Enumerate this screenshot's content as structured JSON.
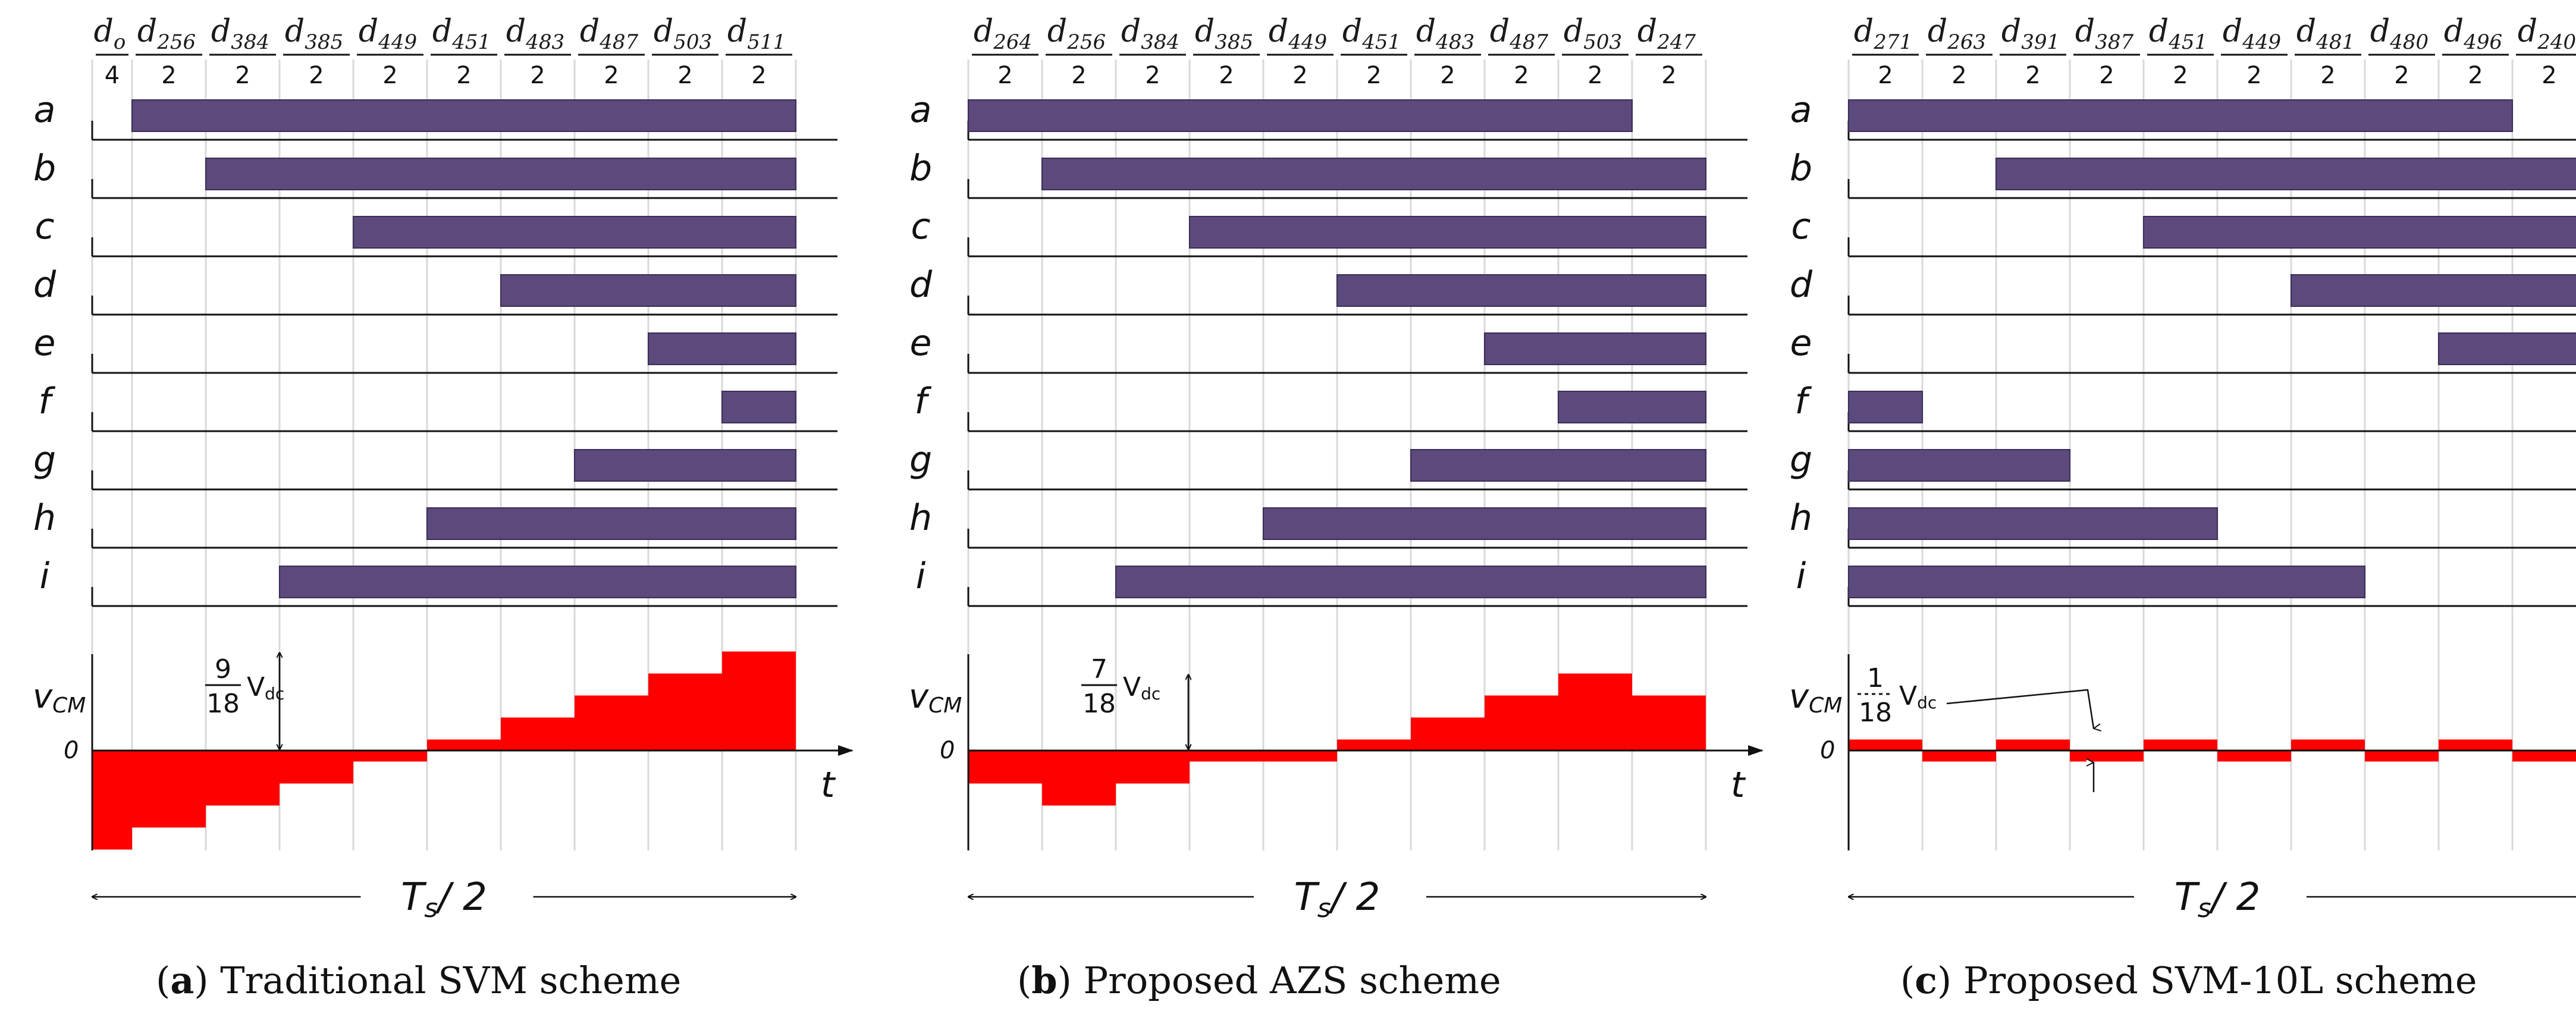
{
  "colors": {
    "bar": "#5c4a7c",
    "bar_edge": "#3b2d57",
    "vcm": "#ff0000",
    "line": "#111111",
    "grid": "#d8d8d8"
  },
  "rows": [
    "a",
    "b",
    "c",
    "d",
    "e",
    "f",
    "g",
    "h",
    "i"
  ],
  "vcm_label": {
    "main": "v",
    "sub": "CM"
  },
  "zero_label": "0",
  "time_label": "t",
  "period_label": {
    "main": "T",
    "sub": "s",
    "rest": "/ 2"
  },
  "panels": [
    {
      "caption_letter": "a",
      "caption_text": " Traditional SVM scheme",
      "intervals": [
        {
          "symbol": "d",
          "sub": "o",
          "count": "4"
        },
        {
          "symbol": "d",
          "sub": "256",
          "count": "2"
        },
        {
          "symbol": "d",
          "sub": "384",
          "count": "2"
        },
        {
          "symbol": "d",
          "sub": "385",
          "count": "2"
        },
        {
          "symbol": "d",
          "sub": "449",
          "count": "2"
        },
        {
          "symbol": "d",
          "sub": "451",
          "count": "2"
        },
        {
          "symbol": "d",
          "sub": "483",
          "count": "2"
        },
        {
          "symbol": "d",
          "sub": "487",
          "count": "2"
        },
        {
          "symbol": "d",
          "sub": "503",
          "count": "2"
        },
        {
          "symbol": "d",
          "sub": "511",
          "count": "2"
        }
      ],
      "switch_states": [
        [
          0,
          1,
          1,
          1,
          1,
          1,
          1,
          1,
          1,
          1
        ],
        [
          0,
          0,
          1,
          1,
          1,
          1,
          1,
          1,
          1,
          1
        ],
        [
          0,
          0,
          0,
          0,
          1,
          1,
          1,
          1,
          1,
          1
        ],
        [
          0,
          0,
          0,
          0,
          0,
          0,
          1,
          1,
          1,
          1
        ],
        [
          0,
          0,
          0,
          0,
          0,
          0,
          0,
          0,
          1,
          1
        ],
        [
          0,
          0,
          0,
          0,
          0,
          0,
          0,
          0,
          0,
          1
        ],
        [
          0,
          0,
          0,
          0,
          0,
          0,
          0,
          1,
          1,
          1
        ],
        [
          0,
          0,
          0,
          0,
          0,
          1,
          1,
          1,
          1,
          1
        ],
        [
          0,
          0,
          0,
          1,
          1,
          1,
          1,
          1,
          1,
          1
        ]
      ],
      "vcm_levels": [
        -9,
        -7,
        -5,
        -3,
        -1,
        1,
        3,
        5,
        7,
        9
      ],
      "annotation": {
        "numerator": "9",
        "denominator": "18",
        "unit": "V",
        "unit_sub": "dc"
      }
    },
    {
      "caption_letter": "b",
      "caption_text": " Proposed AZS scheme",
      "intervals": [
        {
          "symbol": "d",
          "sub": "264",
          "count": "2"
        },
        {
          "symbol": "d",
          "sub": "256",
          "count": "2"
        },
        {
          "symbol": "d",
          "sub": "384",
          "count": "2"
        },
        {
          "symbol": "d",
          "sub": "385",
          "count": "2"
        },
        {
          "symbol": "d",
          "sub": "449",
          "count": "2"
        },
        {
          "symbol": "d",
          "sub": "451",
          "count": "2"
        },
        {
          "symbol": "d",
          "sub": "483",
          "count": "2"
        },
        {
          "symbol": "d",
          "sub": "487",
          "count": "2"
        },
        {
          "symbol": "d",
          "sub": "503",
          "count": "2"
        },
        {
          "symbol": "d",
          "sub": "247",
          "count": "2"
        }
      ],
      "switch_states": [
        [
          1,
          1,
          1,
          1,
          1,
          1,
          1,
          1,
          1,
          0
        ],
        [
          0,
          1,
          1,
          1,
          1,
          1,
          1,
          1,
          1,
          1
        ],
        [
          0,
          0,
          0,
          1,
          1,
          1,
          1,
          1,
          1,
          1
        ],
        [
          0,
          0,
          0,
          0,
          0,
          1,
          1,
          1,
          1,
          1
        ],
        [
          0,
          0,
          0,
          0,
          0,
          0,
          0,
          1,
          1,
          1
        ],
        [
          0,
          0,
          0,
          0,
          0,
          0,
          0,
          0,
          1,
          1
        ],
        [
          0,
          0,
          0,
          0,
          0,
          0,
          1,
          1,
          1,
          1
        ],
        [
          0,
          0,
          0,
          0,
          1,
          1,
          1,
          1,
          1,
          1
        ],
        [
          0,
          0,
          1,
          1,
          1,
          1,
          1,
          1,
          1,
          1
        ]
      ],
      "vcm_levels": [
        -3,
        -5,
        -3,
        -1,
        -1,
        1,
        3,
        5,
        7,
        5
      ],
      "annotation": {
        "numerator": "7",
        "denominator": "18",
        "unit": "V",
        "unit_sub": "dc"
      }
    },
    {
      "caption_letter": "c",
      "caption_text": " Proposed SVM-10L scheme",
      "intervals": [
        {
          "symbol": "d",
          "sub": "271",
          "count": "2"
        },
        {
          "symbol": "d",
          "sub": "263",
          "count": "2"
        },
        {
          "symbol": "d",
          "sub": "391",
          "count": "2"
        },
        {
          "symbol": "d",
          "sub": "387",
          "count": "2"
        },
        {
          "symbol": "d",
          "sub": "451",
          "count": "2"
        },
        {
          "symbol": "d",
          "sub": "449",
          "count": "2"
        },
        {
          "symbol": "d",
          "sub": "481",
          "count": "2"
        },
        {
          "symbol": "d",
          "sub": "480",
          "count": "2"
        },
        {
          "symbol": "d",
          "sub": "496",
          "count": "2"
        },
        {
          "symbol": "d",
          "sub": "240",
          "count": "2"
        }
      ],
      "switch_states": [
        [
          1,
          1,
          1,
          1,
          1,
          1,
          1,
          1,
          1,
          0
        ],
        [
          0,
          0,
          1,
          1,
          1,
          1,
          1,
          1,
          1,
          1
        ],
        [
          0,
          0,
          0,
          0,
          1,
          1,
          1,
          1,
          1,
          1
        ],
        [
          0,
          0,
          0,
          0,
          0,
          0,
          1,
          1,
          1,
          1
        ],
        [
          0,
          0,
          0,
          0,
          0,
          0,
          0,
          0,
          1,
          1
        ],
        [
          1,
          0,
          0,
          0,
          0,
          0,
          0,
          0,
          0,
          0
        ],
        [
          1,
          1,
          1,
          0,
          0,
          0,
          0,
          0,
          0,
          0
        ],
        [
          1,
          1,
          1,
          1,
          1,
          0,
          0,
          0,
          0,
          0
        ],
        [
          1,
          1,
          1,
          1,
          1,
          1,
          1,
          0,
          0,
          0
        ]
      ],
      "vcm_levels": [
        1,
        -1,
        1,
        -1,
        1,
        -1,
        1,
        -1,
        1,
        -1
      ],
      "annotation": {
        "numerator": "1",
        "denominator": "18",
        "unit": "V",
        "unit_sub": "dc"
      }
    }
  ]
}
